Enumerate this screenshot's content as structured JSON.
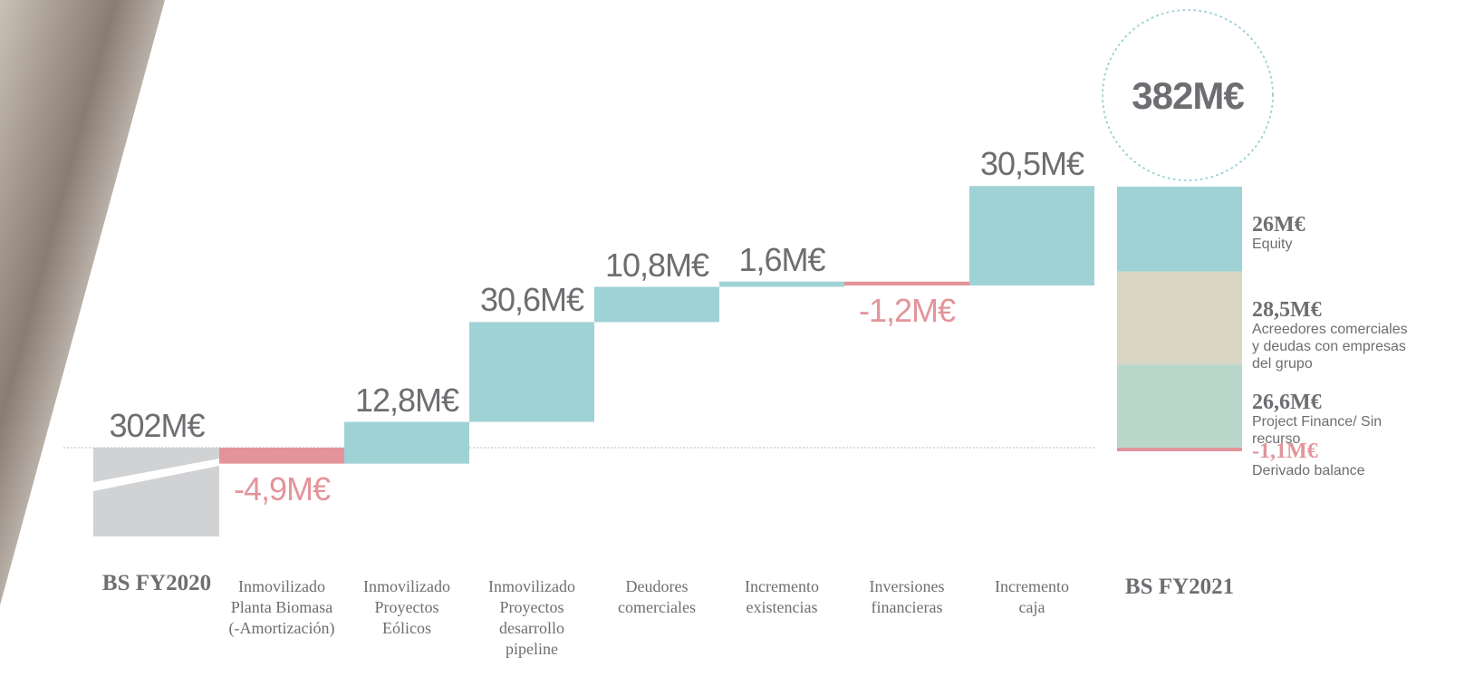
{
  "chart_data": {
    "type": "waterfall",
    "categories": [
      "BS FY2020",
      "Inmovilizado\nPlanta Biomasa\n(-Amortización)",
      "Inmovilizado\nProyectos\nEólicos",
      "Inmovilizado\nProyectos\ndesarrollo\npipeline",
      "Deudores\ncomerciales",
      "Incremento\nexistencias",
      "Inversiones\nfinancieras",
      "Incremento\ncaja"
    ],
    "values": [
      302,
      -4.9,
      12.8,
      30.6,
      10.8,
      1.6,
      -1.2,
      30.5
    ],
    "value_labels": [
      "302M€",
      "-4,9M€",
      "12,8M€",
      "30,6M€",
      "10,8M€",
      "1,6M€",
      "-1,2M€",
      "30,5M€"
    ],
    "start_color": "#d1d2d4",
    "positive_color": "#9fd2d5",
    "negative_color": "#e3949a",
    "total": {
      "name": "BS FY2021",
      "value": 382,
      "value_label": "382M€"
    },
    "breakdown": [
      {
        "name": "Equity",
        "value": 26,
        "value_label": "26M€",
        "color": "#9fd2d5"
      },
      {
        "name": "Acreedores comerciales y deudas con empresas del grupo",
        "value": 28.5,
        "value_label": "28,5M€",
        "color": "#d9d6c4"
      },
      {
        "name": "Project Finance/ Sin recurso",
        "value": 26.6,
        "value_label": "26,6M€",
        "color": "#b9d8cb"
      },
      {
        "name": "Derivado balance",
        "value": -1.1,
        "value_label": "-1,1M€",
        "color": "#e3949a"
      }
    ]
  }
}
